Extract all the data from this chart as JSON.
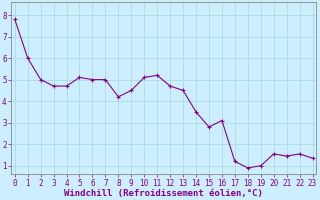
{
  "x": [
    0,
    1,
    2,
    3,
    4,
    5,
    6,
    7,
    8,
    9,
    10,
    11,
    12,
    13,
    14,
    15,
    16,
    17,
    18,
    19,
    20,
    21,
    22,
    23
  ],
  "y": [
    7.8,
    6.0,
    5.0,
    4.7,
    4.7,
    5.1,
    5.0,
    5.0,
    4.2,
    4.5,
    5.1,
    5.2,
    4.7,
    4.5,
    3.5,
    2.8,
    3.1,
    1.2,
    0.9,
    1.0,
    1.55,
    1.45,
    1.55,
    1.35
  ],
  "line_color": "#880088",
  "marker": "+",
  "markersize": 3,
  "linewidth": 0.8,
  "markeredgewidth": 0.8,
  "xlabel": "Windchill (Refroidissement éolien,°C)",
  "xlabel_fontsize": 6.5,
  "ylabel_ticks": [
    1,
    2,
    3,
    4,
    5,
    6,
    7,
    8
  ],
  "xticks": [
    0,
    1,
    2,
    3,
    4,
    5,
    6,
    7,
    8,
    9,
    10,
    11,
    12,
    13,
    14,
    15,
    16,
    17,
    18,
    19,
    20,
    21,
    22,
    23
  ],
  "xlim": [
    -0.3,
    23.3
  ],
  "ylim": [
    0.6,
    8.6
  ],
  "bg_color": "#cceeff",
  "grid_color": "#aadddd",
  "border_color": "#888888",
  "tick_color": "#880088",
  "label_color": "#880088",
  "tick_fontsize": 5.5,
  "title": ""
}
